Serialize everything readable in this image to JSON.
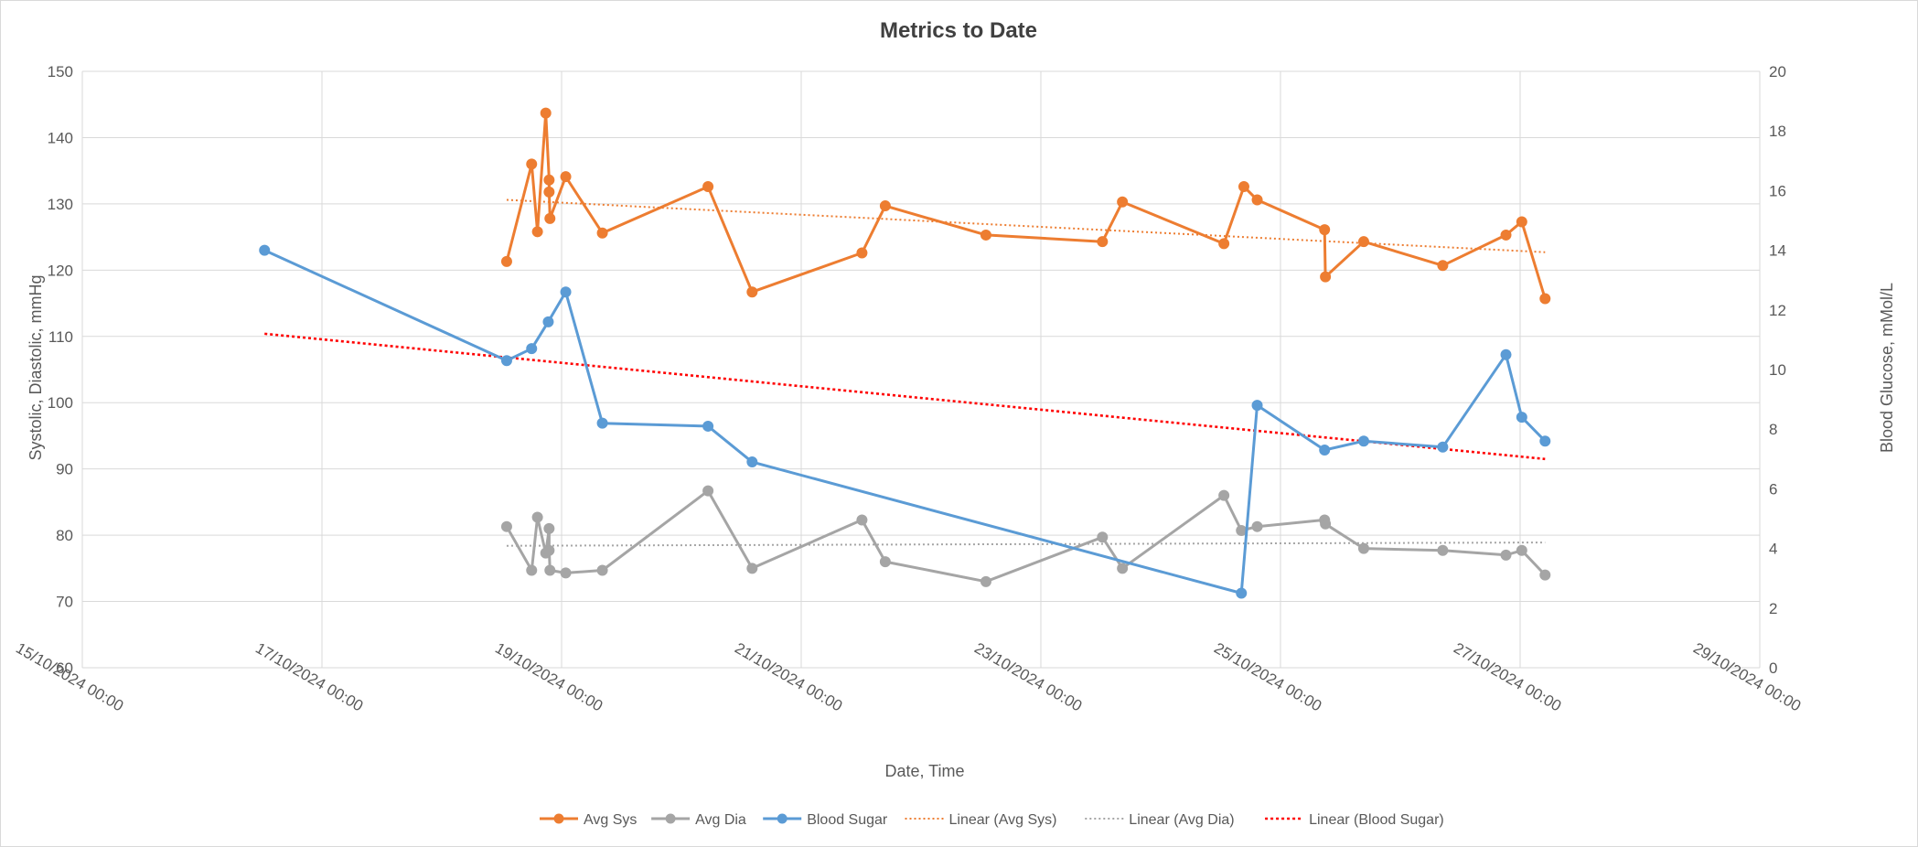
{
  "chart_data": {
    "type": "line",
    "title": "Metrics to Date",
    "xlabel": "Date, Time",
    "ylabel_left": "Systolic, Diastolic, mmHg",
    "ylabel_right": "Blood Glucose, mMol/L",
    "x_axis": {
      "type": "date",
      "min": "2024-10-15T00:00",
      "max": "2024-10-29T00:00",
      "tick_labels": [
        "15/10/2024 00:00",
        "17/10/2024 00:00",
        "19/10/2024 00:00",
        "21/10/2024 00:00",
        "23/10/2024 00:00",
        "25/10/2024 00:00",
        "27/10/2024 00:00",
        "29/10/2024 00:00"
      ]
    },
    "y_left": {
      "min": 60,
      "max": 150,
      "step": 10,
      "ticks": [
        "60",
        "70",
        "80",
        "90",
        "100",
        "110",
        "120",
        "130",
        "140",
        "150"
      ]
    },
    "y_right": {
      "min": 0,
      "max": 20,
      "step": 2,
      "ticks": [
        "0",
        "2",
        "4",
        "6",
        "8",
        "10",
        "12",
        "14",
        "16",
        "18",
        "20"
      ]
    },
    "grid": true,
    "legend_position": "bottom",
    "series": [
      {
        "name": "Avg Sys",
        "axis": "left",
        "color": "#ED7D31",
        "points": [
          {
            "x": "2024-10-18T13:00",
            "y": 121.3
          },
          {
            "x": "2024-10-18T18:00",
            "y": 136.0
          },
          {
            "x": "2024-10-18T19:10",
            "y": 125.8
          },
          {
            "x": "2024-10-18T20:50",
            "y": 143.7
          },
          {
            "x": "2024-10-18T21:30",
            "y": 133.6
          },
          {
            "x": "2024-10-18T21:30",
            "y": 131.8
          },
          {
            "x": "2024-10-18T21:40",
            "y": 127.8
          },
          {
            "x": "2024-10-19T00:50",
            "y": 134.1
          },
          {
            "x": "2024-10-19T08:10",
            "y": 125.6
          },
          {
            "x": "2024-10-20T05:20",
            "y": 132.6
          },
          {
            "x": "2024-10-20T14:10",
            "y": 116.7
          },
          {
            "x": "2024-10-21T12:10",
            "y": 122.6
          },
          {
            "x": "2024-10-21T16:50",
            "y": 129.7
          },
          {
            "x": "2024-10-22T13:00",
            "y": 125.3
          },
          {
            "x": "2024-10-23T12:20",
            "y": 124.3
          },
          {
            "x": "2024-10-23T16:20",
            "y": 130.3
          },
          {
            "x": "2024-10-24T12:40",
            "y": 124.0
          },
          {
            "x": "2024-10-24T16:40",
            "y": 132.6
          },
          {
            "x": "2024-10-24T19:20",
            "y": 130.6
          },
          {
            "x": "2024-10-25T08:50",
            "y": 126.1
          },
          {
            "x": "2024-10-25T09:00",
            "y": 119.0
          },
          {
            "x": "2024-10-25T16:40",
            "y": 124.3
          },
          {
            "x": "2024-10-26T08:30",
            "y": 120.7
          },
          {
            "x": "2024-10-26T21:10",
            "y": 125.3
          },
          {
            "x": "2024-10-27T00:20",
            "y": 127.3
          },
          {
            "x": "2024-10-27T05:00",
            "y": 115.7
          }
        ]
      },
      {
        "name": "Avg Dia",
        "axis": "left",
        "color": "#A5A5A5",
        "points": [
          {
            "x": "2024-10-18T13:00",
            "y": 81.3
          },
          {
            "x": "2024-10-18T18:00",
            "y": 74.7
          },
          {
            "x": "2024-10-18T19:10",
            "y": 82.7
          },
          {
            "x": "2024-10-18T20:50",
            "y": 77.3
          },
          {
            "x": "2024-10-18T21:30",
            "y": 81.0
          },
          {
            "x": "2024-10-18T21:30",
            "y": 77.7
          },
          {
            "x": "2024-10-18T21:40",
            "y": 74.7
          },
          {
            "x": "2024-10-19T00:50",
            "y": 74.3
          },
          {
            "x": "2024-10-19T08:10",
            "y": 74.7
          },
          {
            "x": "2024-10-20T05:20",
            "y": 86.7
          },
          {
            "x": "2024-10-20T14:10",
            "y": 75.0
          },
          {
            "x": "2024-10-21T12:10",
            "y": 82.3
          },
          {
            "x": "2024-10-21T16:50",
            "y": 76.0
          },
          {
            "x": "2024-10-22T13:00",
            "y": 73.0
          },
          {
            "x": "2024-10-23T12:20",
            "y": 79.7
          },
          {
            "x": "2024-10-23T16:20",
            "y": 75.0
          },
          {
            "x": "2024-10-24T12:40",
            "y": 86.0
          },
          {
            "x": "2024-10-24T16:10",
            "y": 80.7
          },
          {
            "x": "2024-10-24T19:20",
            "y": 81.3
          },
          {
            "x": "2024-10-25T08:50",
            "y": 82.3
          },
          {
            "x": "2024-10-25T09:00",
            "y": 81.7
          },
          {
            "x": "2024-10-25T16:40",
            "y": 78.0
          },
          {
            "x": "2024-10-26T08:30",
            "y": 77.7
          },
          {
            "x": "2024-10-26T21:10",
            "y": 77.0
          },
          {
            "x": "2024-10-27T00:20",
            "y": 77.7
          },
          {
            "x": "2024-10-27T05:00",
            "y": 74.0
          }
        ]
      },
      {
        "name": "Blood Sugar",
        "axis": "right",
        "color": "#5B9BD5",
        "points": [
          {
            "x": "2024-10-16T12:30",
            "y": 14.0
          },
          {
            "x": "2024-10-18T13:00",
            "y": 10.3
          },
          {
            "x": "2024-10-18T18:00",
            "y": 10.7
          },
          {
            "x": "2024-10-18T21:20",
            "y": 11.6
          },
          {
            "x": "2024-10-19T00:50",
            "y": 12.6
          },
          {
            "x": "2024-10-19T08:10",
            "y": 8.2
          },
          {
            "x": "2024-10-20T05:20",
            "y": 8.1
          },
          {
            "x": "2024-10-20T14:10",
            "y": 6.9
          },
          {
            "x": "2024-10-24T16:10",
            "y": 2.5
          },
          {
            "x": "2024-10-24T19:20",
            "y": 8.8
          },
          {
            "x": "2024-10-25T08:50",
            "y": 7.3
          },
          {
            "x": "2024-10-25T16:40",
            "y": 7.6
          },
          {
            "x": "2024-10-26T08:30",
            "y": 7.4
          },
          {
            "x": "2024-10-26T21:10",
            "y": 10.5
          },
          {
            "x": "2024-10-27T00:20",
            "y": 8.4
          },
          {
            "x": "2024-10-27T05:00",
            "y": 7.6
          }
        ]
      }
    ],
    "trendlines": [
      {
        "name": "Linear (Avg Sys)",
        "axis": "left",
        "color": "#ED7D31",
        "points": [
          {
            "x": "2024-10-18T13:00",
            "y": 130.6
          },
          {
            "x": "2024-10-27T05:00",
            "y": 122.7
          }
        ]
      },
      {
        "name": "Linear (Avg Dia)",
        "axis": "left",
        "color": "#A5A5A5",
        "points": [
          {
            "x": "2024-10-18T13:00",
            "y": 78.4
          },
          {
            "x": "2024-10-27T05:00",
            "y": 78.9
          }
        ]
      },
      {
        "name": "Linear (Blood Sugar)",
        "axis": "right",
        "color": "#FF0000",
        "points": [
          {
            "x": "2024-10-16T12:30",
            "y": 11.2
          },
          {
            "x": "2024-10-27T05:00",
            "y": 7.0
          }
        ]
      }
    ],
    "legend": [
      "Avg Sys",
      "Avg Dia",
      "Blood Sugar",
      "Linear (Avg Sys)",
      "Linear (Avg Dia)",
      "Linear (Blood Sugar)"
    ]
  }
}
